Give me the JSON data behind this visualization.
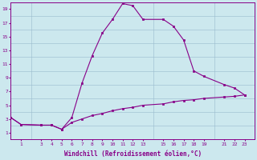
{
  "xlabel": "Windchill (Refroidissement éolien,°C)",
  "bg_color": "#cce8ee",
  "line_color": "#880088",
  "grid_color": "#99bbcc",
  "x_ticks": [
    1,
    3,
    4,
    5,
    6,
    7,
    8,
    9,
    10,
    11,
    12,
    13,
    15,
    16,
    17,
    18,
    19,
    21,
    22,
    23
  ],
  "line1_x": [
    0,
    1,
    3,
    4,
    5,
    6,
    7,
    8,
    9,
    10,
    11,
    12,
    13,
    15,
    16,
    17,
    18,
    19,
    21,
    22,
    23
  ],
  "line1_y": [
    3.2,
    2.2,
    2.1,
    2.1,
    1.5,
    3.2,
    8.2,
    12.2,
    15.5,
    17.5,
    19.8,
    19.5,
    17.5,
    17.5,
    16.5,
    14.5,
    10.0,
    9.2,
    8.0,
    7.5,
    6.5
  ],
  "line2_x": [
    0,
    1,
    3,
    4,
    5,
    6,
    7,
    8,
    9,
    10,
    11,
    12,
    13,
    15,
    16,
    17,
    18,
    19,
    21,
    22,
    23
  ],
  "line2_y": [
    3.2,
    2.2,
    2.1,
    2.1,
    1.5,
    2.5,
    3.0,
    3.5,
    3.8,
    4.2,
    4.5,
    4.7,
    5.0,
    5.2,
    5.5,
    5.7,
    5.8,
    6.0,
    6.2,
    6.3,
    6.5
  ],
  "xlim": [
    0,
    24
  ],
  "ylim": [
    0,
    20
  ],
  "yticks": [
    1,
    3,
    5,
    7,
    9,
    11,
    13,
    15,
    17,
    19
  ]
}
